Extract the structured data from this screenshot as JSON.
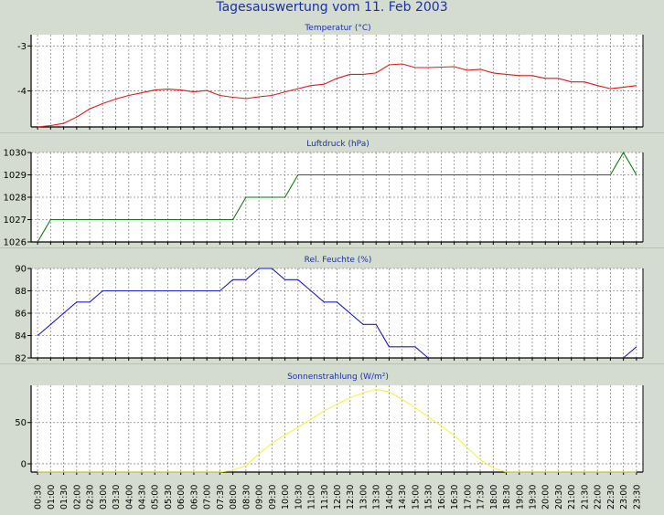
{
  "title": "Tagesauswertung vom 11. Feb 2003",
  "colors": {
    "background": "#d4dccf",
    "plot_background": "#ffffff",
    "grid": "#8a8a8a",
    "temperature": "#e01818",
    "pressure": "#0e7a0e",
    "humidity": "#1a1ad0",
    "radiation": "#f2f24a"
  },
  "chart_data": [
    {
      "type": "line",
      "title": "Temperatur (°C)",
      "ylim": [
        -4.8,
        -2.75
      ],
      "yticks": [
        -4,
        -3
      ],
      "ytick_labels": [
        "-4",
        "-3"
      ],
      "grid": true,
      "series": [
        {
          "color": "#e01818",
          "x": [
            "00:30",
            "01:00",
            "01:30",
            "02:00",
            "02:30",
            "03:00",
            "03:30",
            "04:00",
            "04:30",
            "05:00",
            "05:30",
            "06:00",
            "06:30",
            "07:00",
            "07:30",
            "08:00",
            "08:30",
            "09:00",
            "09:30",
            "10:00",
            "10:30",
            "11:00",
            "11:30",
            "12:00",
            "12:30",
            "13:00",
            "13:30",
            "14:00",
            "14:30",
            "15:00",
            "15:30",
            "16:00",
            "16:30",
            "17:00",
            "17:30",
            "18:00",
            "18:30",
            "19:00",
            "19:30",
            "20:00",
            "20:30",
            "21:00",
            "21:30",
            "22:00",
            "22:30",
            "23:00",
            "23:30"
          ],
          "values": [
            -4.8,
            -4.77,
            -4.72,
            -4.58,
            -4.4,
            -4.28,
            -4.18,
            -4.1,
            -4.04,
            -3.98,
            -3.96,
            -3.98,
            -4.02,
            -3.99,
            -4.1,
            -4.14,
            -4.17,
            -4.13,
            -4.1,
            -4.02,
            -3.95,
            -3.88,
            -3.85,
            -3.72,
            -3.63,
            -3.63,
            -3.6,
            -3.42,
            -3.4,
            -3.48,
            -3.48,
            -3.47,
            -3.46,
            -3.54,
            -3.52,
            -3.6,
            -3.63,
            -3.66,
            -3.66,
            -3.72,
            -3.72,
            -3.8,
            -3.8,
            -3.88,
            -3.95,
            -3.92,
            -3.88
          ]
        }
      ]
    },
    {
      "type": "line",
      "title": "Luftdruck (hPa)",
      "ylim": [
        1026,
        1030
      ],
      "yticks": [
        1026,
        1027,
        1028,
        1029,
        1030
      ],
      "ytick_labels": [
        "1026",
        "1027",
        "1028",
        "1029",
        "1030"
      ],
      "grid": true,
      "series": [
        {
          "color": "#0e7a0e",
          "x": [
            "00:30",
            "01:00",
            "01:30",
            "02:00",
            "02:30",
            "03:00",
            "03:30",
            "04:00",
            "04:30",
            "05:00",
            "05:30",
            "06:00",
            "06:30",
            "07:00",
            "07:30",
            "08:00",
            "08:30",
            "09:00",
            "09:30",
            "10:00",
            "10:30",
            "11:00",
            "11:30",
            "12:00",
            "12:30",
            "13:00",
            "13:30",
            "14:00",
            "14:30",
            "15:00",
            "15:30",
            "16:00",
            "16:30",
            "17:00",
            "17:30",
            "18:00",
            "18:30",
            "19:00",
            "19:30",
            "20:00",
            "20:30",
            "21:00",
            "21:30",
            "22:00",
            "22:30",
            "23:00",
            "23:30"
          ],
          "values": [
            1026,
            1027,
            1027,
            1027,
            1027,
            1027,
            1027,
            1027,
            1027,
            1027,
            1027,
            1027,
            1027,
            1027,
            1027,
            1027,
            1028,
            1028,
            1028,
            1028,
            1029,
            1029,
            1029,
            1029,
            1029,
            1029,
            1029,
            1029,
            1029,
            1029,
            1029,
            1029,
            1029,
            1029,
            1029,
            1029,
            1029,
            1029,
            1029,
            1029,
            1029,
            1029,
            1029,
            1029,
            1029,
            1030,
            1029
          ]
        }
      ]
    },
    {
      "type": "line",
      "title": "Rel. Feuchte (%)",
      "ylim": [
        82,
        90
      ],
      "yticks": [
        82,
        84,
        86,
        88,
        90
      ],
      "ytick_labels": [
        "82",
        "84",
        "86",
        "88",
        "90"
      ],
      "grid": true,
      "series": [
        {
          "color": "#1a1ad0",
          "x": [
            "00:30",
            "01:00",
            "01:30",
            "02:00",
            "02:30",
            "03:00",
            "03:30",
            "04:00",
            "04:30",
            "05:00",
            "05:30",
            "06:00",
            "06:30",
            "07:00",
            "07:30",
            "08:00",
            "08:30",
            "09:00",
            "09:30",
            "10:00",
            "10:30",
            "11:00",
            "11:30",
            "12:00",
            "12:30",
            "13:00",
            "13:30",
            "14:00",
            "14:30",
            "15:00",
            "15:30",
            "16:00",
            "16:30",
            "17:00",
            "17:30",
            "18:00",
            "18:30",
            "19:00",
            "19:30",
            "20:00",
            "20:30",
            "21:00",
            "21:30",
            "22:00",
            "22:30",
            "23:00",
            "23:30"
          ],
          "values": [
            84,
            85,
            86,
            87,
            87,
            88,
            88,
            88,
            88,
            88,
            88,
            88,
            88,
            88,
            88,
            89,
            89,
            90,
            90,
            89,
            89,
            88,
            87,
            87,
            86,
            85,
            85,
            83,
            83,
            83,
            82,
            null,
            null,
            null,
            null,
            null,
            null,
            null,
            null,
            null,
            null,
            null,
            null,
            null,
            null,
            82,
            83
          ]
        }
      ]
    },
    {
      "type": "line",
      "title": "Sonnenstrahlung (W/m²)",
      "ylim": [
        -10,
        95
      ],
      "yticks": [
        0,
        50
      ],
      "ytick_labels": [
        "0",
        "50"
      ],
      "grid": true,
      "series": [
        {
          "color": "#f2f24a",
          "x": [
            "00:30",
            "01:00",
            "01:30",
            "02:00",
            "02:30",
            "03:00",
            "03:30",
            "04:00",
            "04:30",
            "05:00",
            "05:30",
            "06:00",
            "06:30",
            "07:00",
            "07:30",
            "08:00",
            "08:30",
            "09:00",
            "09:30",
            "10:00",
            "10:30",
            "11:00",
            "11:30",
            "12:00",
            "12:30",
            "13:00",
            "13:30",
            "14:00",
            "14:30",
            "15:00",
            "15:30",
            "16:00",
            "16:30",
            "17:00",
            "17:30",
            "18:00",
            "18:30",
            "19:00",
            "19:30",
            "20:00",
            "20:30",
            "21:00",
            "21:30",
            "22:00",
            "22:30",
            "23:00",
            "23:30"
          ],
          "values": [
            -10,
            -10,
            -10,
            -10,
            -10,
            -10,
            -10,
            -10,
            -10,
            -10,
            -10,
            -10,
            -10,
            -10,
            -10,
            -8,
            -2,
            12,
            25,
            35,
            44,
            54,
            64,
            72,
            80,
            86,
            90,
            87,
            78,
            68,
            57,
            46,
            34,
            20,
            5,
            -5,
            -10,
            -10,
            -10,
            -10,
            -10,
            -10,
            -10,
            -10,
            -10,
            -10,
            -10
          ]
        }
      ]
    }
  ],
  "x_axis": {
    "labels": [
      "00:30",
      "01:00",
      "01:30",
      "02:00",
      "02:30",
      "03:00",
      "03:30",
      "04:00",
      "04:30",
      "05:00",
      "05:30",
      "06:00",
      "06:30",
      "07:00",
      "07:30",
      "08:00",
      "08:30",
      "09:00",
      "09:30",
      "10:00",
      "10:30",
      "11:00",
      "11:30",
      "12:00",
      "12:30",
      "13:00",
      "13:30",
      "14:00",
      "14:30",
      "15:00",
      "15:30",
      "16:00",
      "16:30",
      "17:00",
      "17:30",
      "18:00",
      "18:30",
      "19:00",
      "19:30",
      "20:00",
      "20:30",
      "21:00",
      "21:30",
      "22:00",
      "22:30",
      "23:00",
      "23:30"
    ]
  }
}
